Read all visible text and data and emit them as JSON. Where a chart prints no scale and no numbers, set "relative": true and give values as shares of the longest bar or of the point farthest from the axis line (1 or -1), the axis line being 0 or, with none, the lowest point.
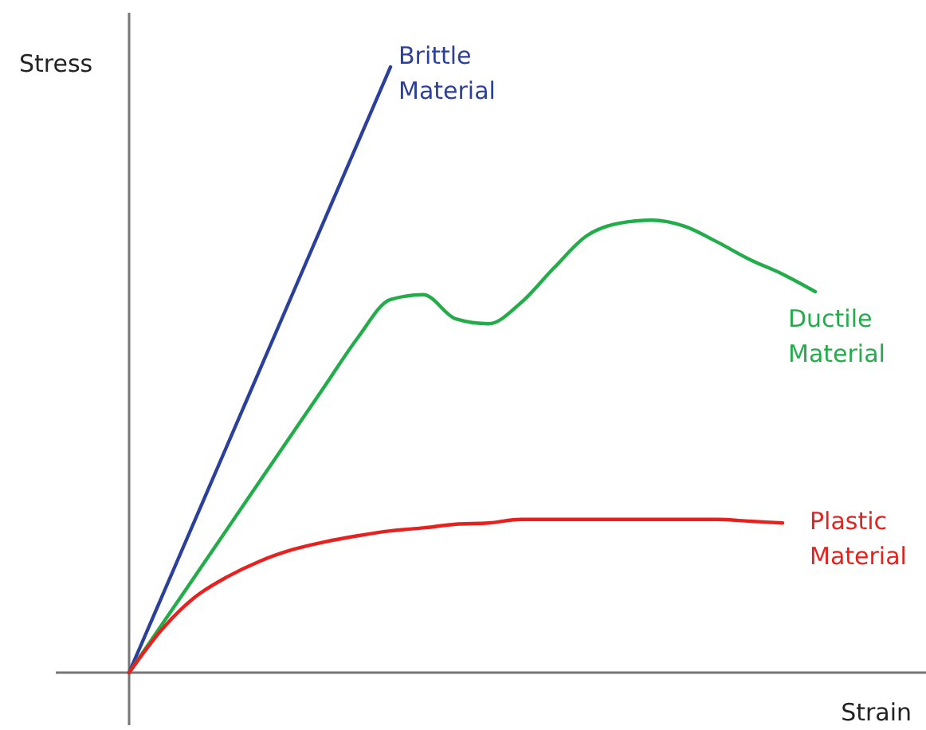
{
  "chart_data": {
    "type": "line",
    "relative": true,
    "xlabel": "Strain",
    "ylabel": "Stress",
    "legend": false,
    "marker": "none",
    "line_style": "solid",
    "categories": [
      null,
      null,
      null,
      null,
      null,
      null,
      null,
      null,
      null,
      null,
      null,
      null,
      null,
      null,
      null,
      null,
      null,
      null,
      null,
      null,
      null,
      null
    ],
    "series": [
      {
        "name": "Brittle Material",
        "color": "#2b3f9c",
        "values": [
          0,
          0.125,
          0.25,
          0.375,
          0.5,
          0.625,
          0.75,
          0.875,
          1,
          null,
          null,
          null,
          null,
          null,
          null,
          null,
          null,
          null,
          null,
          null,
          null,
          null
        ]
      },
      {
        "name": "Ductile Material",
        "color": "#22ad4a",
        "values": [
          0,
          0.079,
          0.158,
          0.237,
          0.316,
          0.395,
          0.474,
          0.553,
          0.616,
          0.624,
          0.584,
          0.576,
          0.611,
          0.668,
          0.721,
          0.742,
          0.747,
          0.737,
          0.711,
          0.682,
          0.658,
          0.629
        ]
      },
      {
        "name": "Plastic Material",
        "color": "#e8201e",
        "values": [
          0,
          0.071,
          0.124,
          0.158,
          0.184,
          0.203,
          0.216,
          0.226,
          0.234,
          0.239,
          0.245,
          0.247,
          0.253,
          0.253,
          0.253,
          0.253,
          0.253,
          0.253,
          0.253,
          0.25,
          0.247,
          null
        ]
      }
    ]
  }
}
